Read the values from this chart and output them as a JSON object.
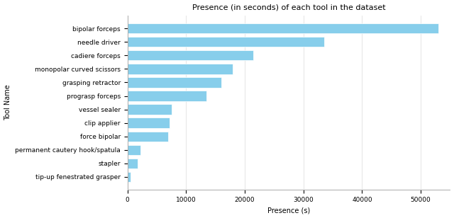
{
  "title": "Presence (in seconds) of each tool in the dataset",
  "xlabel": "Presence (s)",
  "ylabel": "Tool Name",
  "tools": [
    "tip-up fenestrated grasper",
    "stapler",
    "permanent cautery hook/spatula",
    "force bipolar",
    "clip applier",
    "vessel sealer",
    "prograsp forceps",
    "grasping retractor",
    "monopolar curved scissors",
    "cadiere forceps",
    "needle driver",
    "bipolar forceps"
  ],
  "values": [
    500,
    1800,
    2200,
    7000,
    7200,
    7500,
    13500,
    16000,
    18000,
    21500,
    33500,
    53000
  ],
  "bar_color": "#87CEEB",
  "background_color": "#ffffff",
  "xlim": [
    0,
    55000
  ],
  "xticks": [
    0,
    10000,
    20000,
    30000,
    40000,
    50000
  ],
  "title_fontsize": 8,
  "label_fontsize": 7,
  "tick_fontsize": 6.5
}
